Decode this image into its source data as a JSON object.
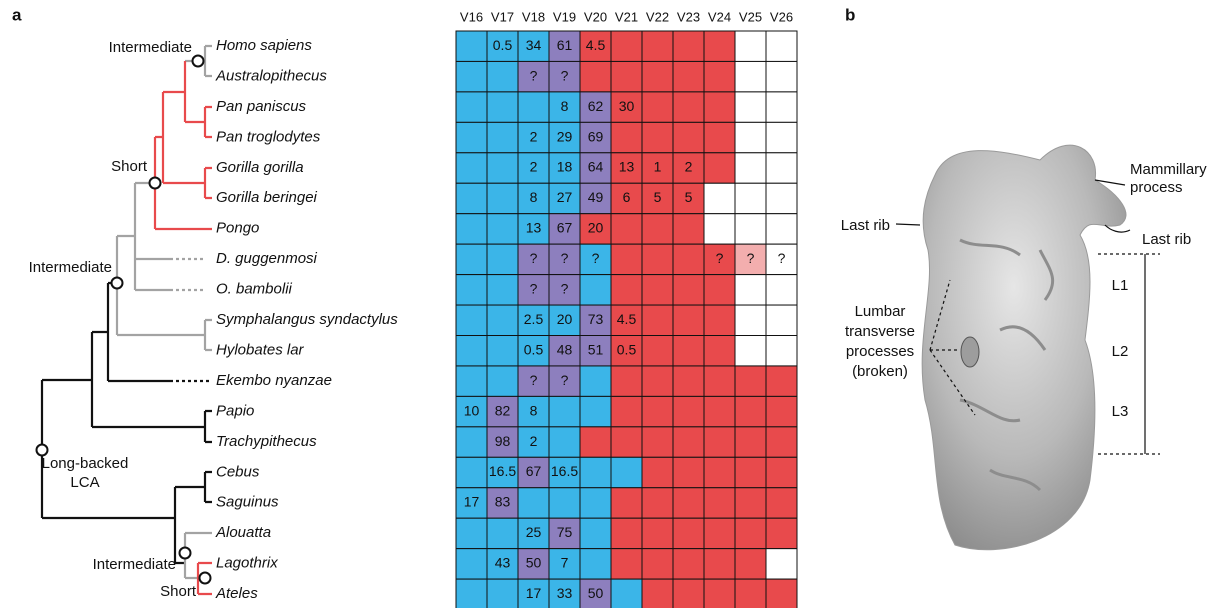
{
  "panels": {
    "a": "a",
    "b": "b"
  },
  "tree": {
    "taxa": [
      "Homo sapiens",
      "Australopithecus",
      "Pan paniscus",
      "Pan troglodytes",
      "Gorilla gorilla",
      "Gorilla beringei",
      "Pongo",
      "D. guggenmosi",
      "O. bambolii",
      "Symphalangus syndactylus",
      "Hylobates lar",
      "Ekembo nyanzae",
      "Papio",
      "Trachypithecus",
      "Cebus",
      "Saguinus",
      "Alouatta",
      "Lagothrix",
      "Ateles"
    ],
    "nodes": [
      {
        "label": "Intermediate"
      },
      {
        "label": "Short"
      },
      {
        "label": "Intermediate"
      },
      {
        "label": [
          "Long-backed",
          "LCA"
        ]
      },
      {
        "label": "Intermediate"
      },
      {
        "label": "Short"
      }
    ]
  },
  "grid": {
    "columns": [
      "V16",
      "V17",
      "V18",
      "V19",
      "V20",
      "V21",
      "V22",
      "V23",
      "V24",
      "V25",
      "V26"
    ],
    "palette": {
      "B": "#3bb5e8",
      "P": "#8d7fbe",
      "R": "#e84a4c",
      "W": "#ffffff",
      "K": "#f3aeae"
    },
    "rows": [
      {
        "fills": "BBBPRRRRRWW",
        "labels": {
          "1": "0.5",
          "2": "34",
          "3": "61",
          "4": "4.5"
        }
      },
      {
        "fills": "BBPPRRRRRWW",
        "labels": {
          "2": "?",
          "3": "?"
        }
      },
      {
        "fills": "BBBBPRRRRWW",
        "labels": {
          "3": "8",
          "4": "62",
          "5": "30"
        }
      },
      {
        "fills": "BBBBPRRRRWW",
        "labels": {
          "2": "2",
          "3": "29",
          "4": "69"
        }
      },
      {
        "fills": "BBBBPRRRRWW",
        "labels": {
          "2": "2",
          "3": "18",
          "4": "64",
          "5": "13",
          "6": "1",
          "7": "2"
        }
      },
      {
        "fills": "BBBBPRRRWWW",
        "labels": {
          "2": "8",
          "3": "27",
          "4": "49",
          "5": "6",
          "6": "5",
          "7": "5"
        }
      },
      {
        "fills": "BBBPRRRRWWW",
        "labels": {
          "2": "13",
          "3": "67",
          "4": "20"
        }
      },
      {
        "fills": "BBPPBRRRRKW",
        "labels": {
          "2": "?",
          "3": "?",
          "4": "?",
          "8": "?",
          "9": "?",
          "10": "?"
        }
      },
      {
        "fills": "BBPPBRRRRWW",
        "labels": {
          "2": "?",
          "3": "?"
        }
      },
      {
        "fills": "BBBBPRRRRWW",
        "labels": {
          "2": "2.5",
          "3": "20",
          "4": "73",
          "5": "4.5"
        }
      },
      {
        "fills": "BBBPPRRRRWW",
        "labels": {
          "2": "0.5",
          "3": "48",
          "4": "51",
          "5": "0.5"
        }
      },
      {
        "fills": "BBPPBRRRRRR",
        "labels": {
          "2": "?",
          "3": "?"
        }
      },
      {
        "fills": "BPBBBRRRRRR",
        "labels": {
          "0": "10",
          "1": "82",
          "2": "8"
        }
      },
      {
        "fills": "BPBBRRRRRRR",
        "labels": {
          "1": "98",
          "2": "2"
        }
      },
      {
        "fills": "BBPBBBRRRRR",
        "labels": {
          "1": "16.5",
          "2": "67",
          "3": "16.5"
        }
      },
      {
        "fills": "BPBBBRRRRRR",
        "labels": {
          "0": "17",
          "1": "83"
        }
      },
      {
        "fills": "BBBPBRRRRRR",
        "labels": {
          "2": "25",
          "3": "75"
        }
      },
      {
        "fills": "BBPBBRRRRRW",
        "labels": {
          "1": "43",
          "2": "50",
          "3": "7"
        }
      },
      {
        "fills": "BBBBPBRRRRR",
        "labels": {
          "2": "17",
          "3": "33",
          "4": "50"
        }
      }
    ]
  },
  "specimen": {
    "mammillary": [
      "Mammillary",
      "process"
    ],
    "last_rib_left": "Last rib",
    "last_rib_right": "Last rib",
    "levels": [
      "L1",
      "L2",
      "L3"
    ],
    "lumbar": [
      "Lumbar",
      "transverse",
      "processes",
      "(broken)"
    ]
  }
}
